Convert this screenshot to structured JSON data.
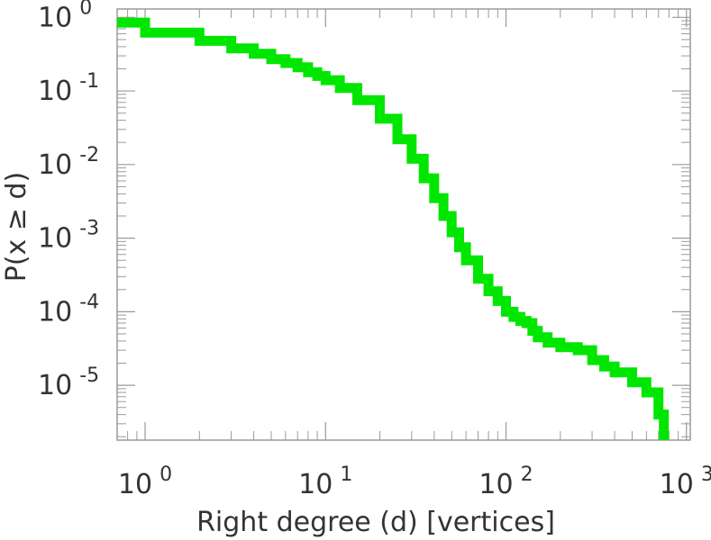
{
  "chart_data": {
    "type": "line",
    "step": true,
    "xlabel": "Right degree (d) [vertices]",
    "ylabel": "P(x ≥ d)",
    "x_scale": "log",
    "y_scale": "log",
    "xlim": [
      0.7,
      1050
    ],
    "ylim": [
      1.8e-06,
      1.3
    ],
    "grid": false,
    "legend": "none",
    "line_color": "#00e600",
    "x_ticks": [
      {
        "base": "10",
        "exp": "0",
        "value": 1
      },
      {
        "base": "10",
        "exp": "1",
        "value": 10
      },
      {
        "base": "10",
        "exp": "2",
        "value": 100
      },
      {
        "base": "10",
        "exp": "3",
        "value": 1000
      }
    ],
    "y_ticks": [
      {
        "base": "10",
        "exp": "0",
        "value": 1
      },
      {
        "base": "10",
        "exp": "-1",
        "value": 0.1
      },
      {
        "base": "10",
        "exp": "-2",
        "value": 0.01
      },
      {
        "base": "10",
        "exp": "-3",
        "value": 0.001
      },
      {
        "base": "10",
        "exp": "-4",
        "value": 0.0001
      },
      {
        "base": "10",
        "exp": "-5",
        "value": 1e-05
      }
    ],
    "series": [
      {
        "x": [
          0.7,
          1,
          2,
          3,
          4,
          5,
          6,
          7,
          8,
          9,
          10,
          12,
          15,
          20,
          25,
          30,
          35,
          40,
          45,
          50,
          55,
          60,
          70,
          80,
          90,
          100,
          110,
          120,
          130,
          140,
          150,
          170,
          200,
          250,
          300,
          350,
          400,
          500,
          600,
          700,
          750
        ],
        "y": [
          0.85,
          0.62,
          0.48,
          0.38,
          0.32,
          0.27,
          0.24,
          0.21,
          0.18,
          0.16,
          0.14,
          0.11,
          0.075,
          0.042,
          0.022,
          0.012,
          0.0065,
          0.0035,
          0.002,
          0.0012,
          0.00075,
          0.0005,
          0.00028,
          0.00019,
          0.00014,
          0.0001,
          8.5e-05,
          7.5e-05,
          7e-05,
          5.5e-05,
          4.5e-05,
          3.8e-05,
          3.3e-05,
          3e-05,
          2.2e-05,
          1.8e-05,
          1.5e-05,
          1.1e-05,
          8e-06,
          4e-06,
          1.8e-06
        ]
      }
    ]
  }
}
